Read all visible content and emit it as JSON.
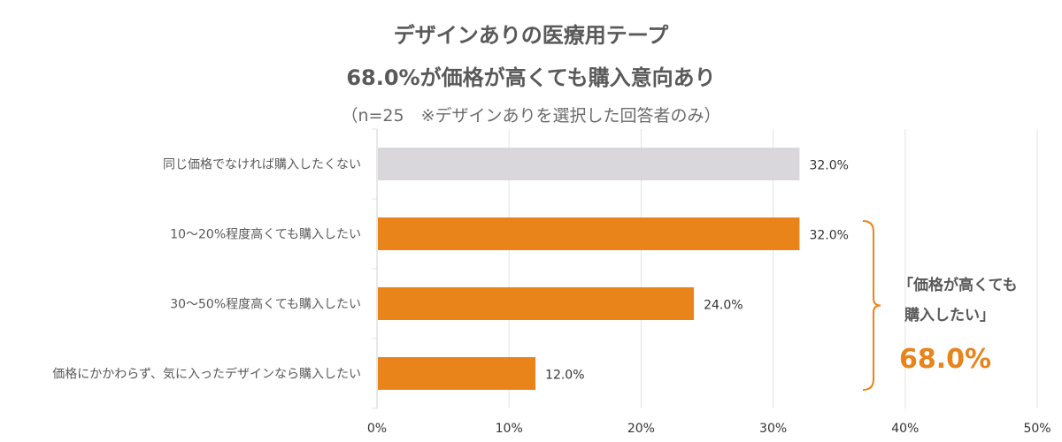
{
  "chart_data": {
    "type": "bar",
    "orientation": "horizontal",
    "title": "デザインありの医療用テープ",
    "subtitle": "68.0%が価格が高くても購入意向あり",
    "note": "（n=25　※デザインありを選択した回答者のみ）",
    "categories": [
      "同じ価格でなければ購入したくない",
      "10〜20%程度高くても購入したい",
      "30〜50%程度高くても購入したい",
      "価格にかかわらず、気に入ったデザインなら購入したい"
    ],
    "values": [
      32.0,
      32.0,
      24.0,
      12.0
    ],
    "value_labels": [
      "32.0%",
      "32.0%",
      "24.0%",
      "12.0%"
    ],
    "bar_colors": [
      "#D9D7DC",
      "#E8841A",
      "#E8841A",
      "#E8841A"
    ],
    "xlim": [
      0,
      50
    ],
    "x_ticks": [
      0,
      10,
      20,
      30,
      40,
      50
    ],
    "x_tick_labels": [
      "0%",
      "10%",
      "20%",
      "30%",
      "40%",
      "50%"
    ],
    "grid": true,
    "callout": {
      "line1": "「価格が高くても",
      "line2": "購入したい」",
      "value": "68.0%",
      "bracket_color": "#E8841A",
      "value_color": "#E8841A"
    }
  }
}
